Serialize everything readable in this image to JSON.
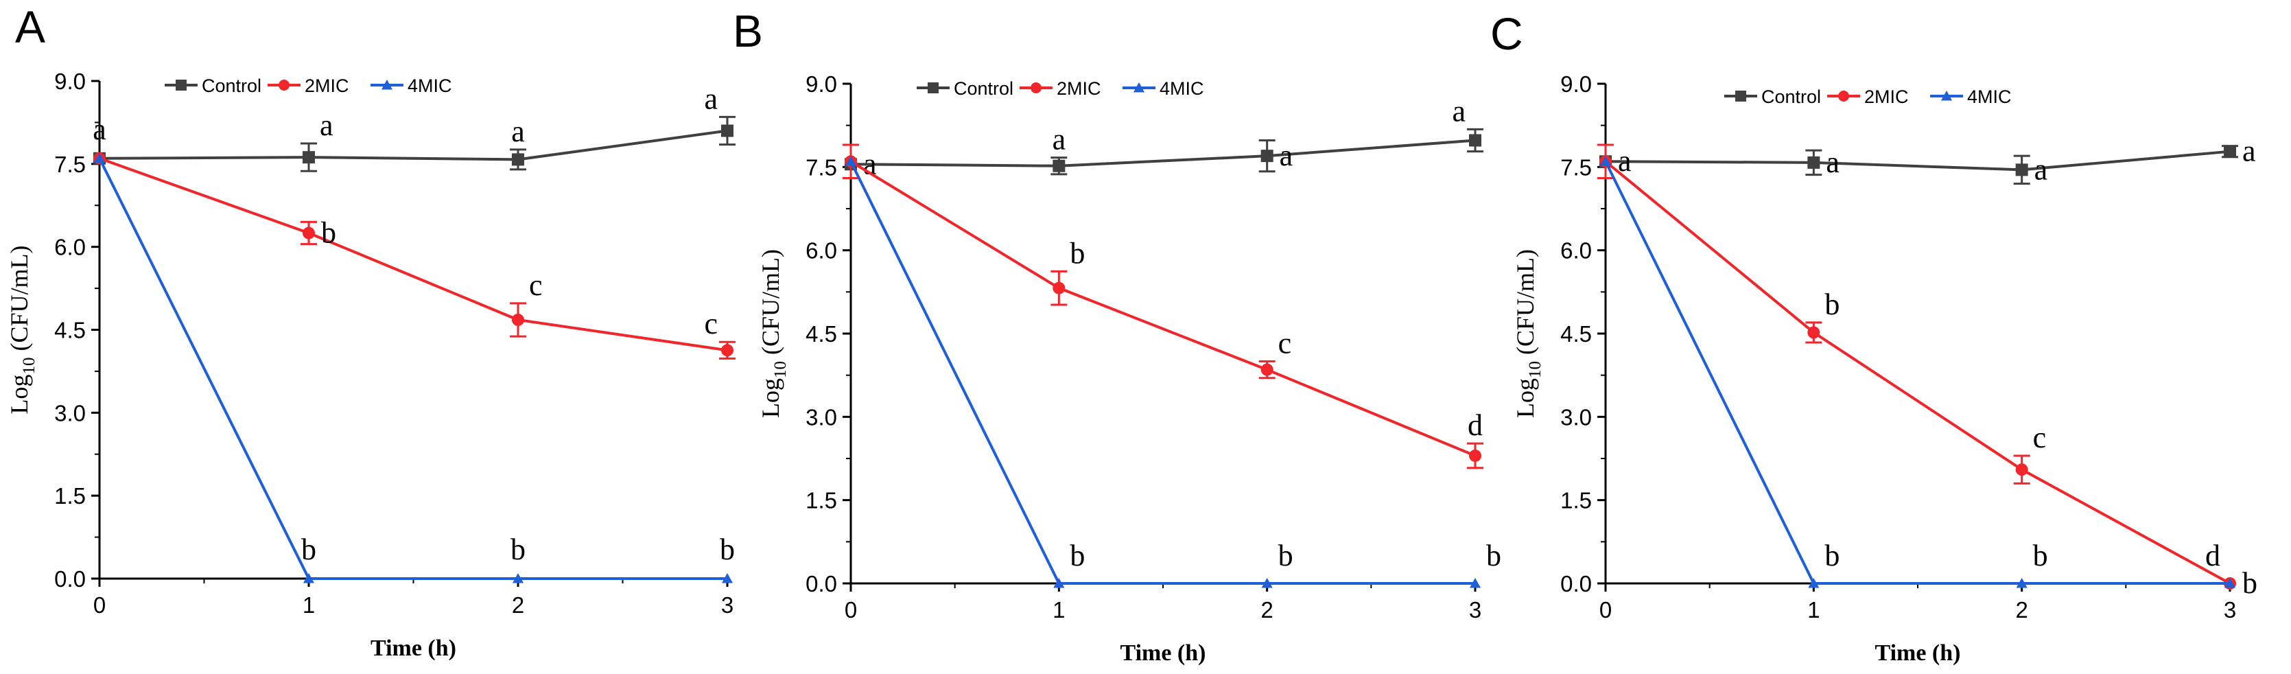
{
  "colors": {
    "control": "#404040",
    "mic2": "#f0262b",
    "mic4": "#1f5fd8",
    "axis": "#000000"
  },
  "chart_data": [
    {
      "panel": "A",
      "type": "line",
      "x": [
        0,
        1,
        2,
        3
      ],
      "xlabel": "Time (h)",
      "ylabel_main": "Log",
      "ylabel_sub": "10",
      "ylabel_rest": " (CFU/mL)",
      "xlim": [
        0,
        3
      ],
      "ylim": [
        0,
        9
      ],
      "xticks": [
        "0",
        "1",
        "2",
        "3"
      ],
      "yticks": [
        "0.0",
        "1.5",
        "3.0",
        "4.5",
        "6.0",
        "7.5",
        "9.0"
      ],
      "legend_position": "top-left",
      "series": [
        {
          "name": "Control",
          "marker": "square",
          "color_key": "control",
          "values": [
            7.6,
            7.62,
            7.58,
            8.1
          ],
          "errors": [
            0.0,
            0.25,
            0.18,
            0.25
          ],
          "letters": [
            "a",
            "a",
            "a",
            "a"
          ],
          "letter_pos": [
            "above",
            "above-right",
            "above",
            "above-left"
          ]
        },
        {
          "name": "2MIC",
          "marker": "circle",
          "color_key": "mic2",
          "values": [
            7.6,
            6.25,
            4.68,
            4.13
          ],
          "errors": [
            0.0,
            0.2,
            0.3,
            0.15
          ],
          "letters": [
            "",
            "b",
            "c",
            "c"
          ],
          "letter_pos": [
            "",
            "right",
            "above-right",
            "above-left"
          ]
        },
        {
          "name": "4MIC",
          "marker": "triangle",
          "color_key": "mic4",
          "values": [
            7.6,
            0.0,
            0.0,
            0.0
          ],
          "errors": [
            0.0,
            0.0,
            0.0,
            0.0
          ],
          "letters": [
            "",
            "b",
            "b",
            "b"
          ],
          "letter_pos": [
            "",
            "above",
            "above",
            "above"
          ]
        }
      ]
    },
    {
      "panel": "B",
      "type": "line",
      "x": [
        0,
        1,
        2,
        3
      ],
      "xlabel": "Time (h)",
      "ylabel_main": "Log",
      "ylabel_sub": "10",
      "ylabel_rest": " (CFU/mL)",
      "xlim": [
        0,
        3
      ],
      "ylim": [
        0,
        9
      ],
      "xticks": [
        "0",
        "1",
        "2",
        "3"
      ],
      "yticks": [
        "0.0",
        "1.5",
        "3.0",
        "4.5",
        "6.0",
        "7.5",
        "9.0"
      ],
      "legend_position": "top-left",
      "series": [
        {
          "name": "Control",
          "marker": "square",
          "color_key": "control",
          "values": [
            7.55,
            7.52,
            7.7,
            7.98
          ],
          "errors": [
            0.0,
            0.15,
            0.28,
            0.2
          ],
          "letters": [
            "a",
            "a",
            "a",
            "a"
          ],
          "letter_pos": [
            "right",
            "above",
            "right",
            "above-left"
          ]
        },
        {
          "name": "2MIC",
          "marker": "circle",
          "color_key": "mic2",
          "values": [
            7.6,
            5.32,
            3.85,
            2.3
          ],
          "errors": [
            0.3,
            0.3,
            0.15,
            0.22
          ],
          "letters": [
            "",
            "b",
            "c",
            "d"
          ],
          "letter_pos": [
            "",
            "above-right",
            "above-right",
            "above"
          ]
        },
        {
          "name": "4MIC",
          "marker": "triangle",
          "color_key": "mic4",
          "values": [
            7.6,
            0.0,
            0.0,
            0.0
          ],
          "errors": [
            0.0,
            0.0,
            0.0,
            0.0
          ],
          "letters": [
            "",
            "b",
            "b",
            "b"
          ],
          "letter_pos": [
            "",
            "above-right",
            "above-right",
            "above-right"
          ]
        }
      ]
    },
    {
      "panel": "C",
      "type": "line",
      "x": [
        0,
        1,
        2,
        3
      ],
      "xlabel": "Time (h)",
      "ylabel_main": "Log",
      "ylabel_sub": "10",
      "ylabel_rest": " (CFU/mL)",
      "xlim": [
        0,
        3
      ],
      "ylim": [
        0,
        9
      ],
      "xticks": [
        "0",
        "1",
        "2",
        "3"
      ],
      "yticks": [
        "0.0",
        "1.5",
        "3.0",
        "4.5",
        "6.0",
        "7.5",
        "9.0"
      ],
      "legend_position": "top-center",
      "series": [
        {
          "name": "Control",
          "marker": "square",
          "color_key": "control",
          "values": [
            7.6,
            7.58,
            7.45,
            7.78
          ],
          "errors": [
            0.0,
            0.22,
            0.25,
            0.1
          ],
          "letters": [
            "a",
            "a",
            "a",
            "a"
          ],
          "letter_pos": [
            "right",
            "right",
            "right",
            "right"
          ]
        },
        {
          "name": "2MIC",
          "marker": "circle",
          "color_key": "mic2",
          "values": [
            7.6,
            4.52,
            2.05,
            0.0
          ],
          "errors": [
            0.3,
            0.18,
            0.25,
            0.0
          ],
          "letters": [
            "",
            "b",
            "c",
            "d"
          ],
          "letter_pos": [
            "",
            "above-right",
            "above-right",
            "above-left"
          ]
        },
        {
          "name": "4MIC",
          "marker": "triangle",
          "color_key": "mic4",
          "values": [
            7.6,
            0.0,
            0.0,
            0.0
          ],
          "errors": [
            0.0,
            0.0,
            0.0,
            0.0
          ],
          "letters": [
            "",
            "b",
            "b",
            "b"
          ],
          "letter_pos": [
            "",
            "above-right",
            "above-right",
            "right"
          ]
        }
      ]
    }
  ]
}
